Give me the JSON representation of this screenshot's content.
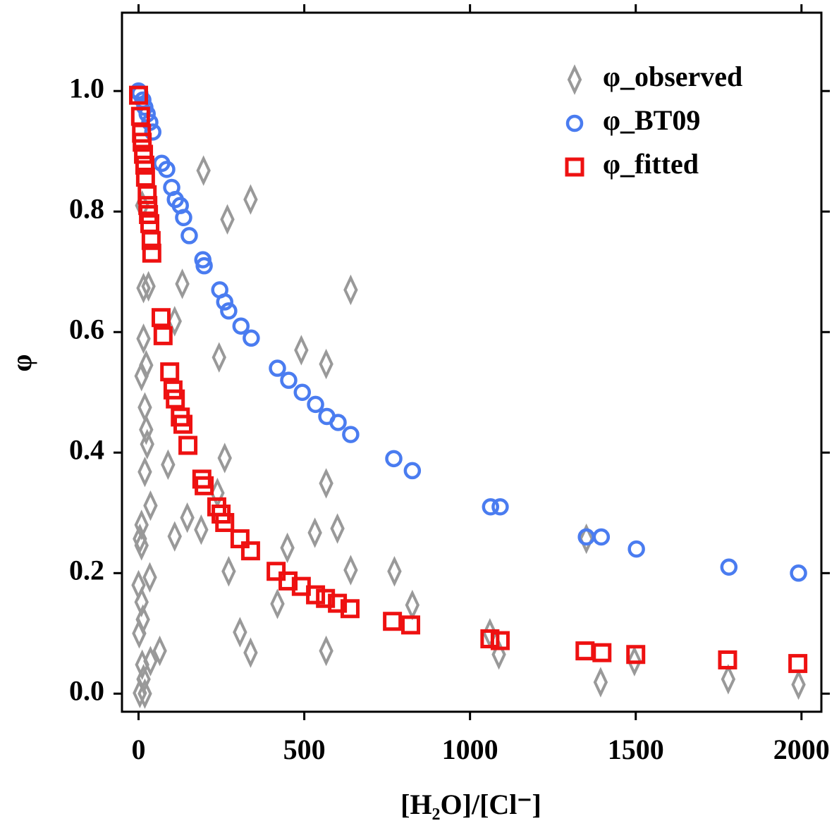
{
  "chart_data": {
    "type": "scatter",
    "xlabel": "[H₂O]/[Cl⁻]",
    "ylabel": "φ",
    "xlim": [
      -50,
      2060
    ],
    "ylim": [
      -0.03,
      1.13
    ],
    "xticks": [
      0,
      500,
      1000,
      1500,
      2000
    ],
    "yticks": [
      {
        "value": 0,
        "label": "0.0"
      },
      0.2,
      0.4,
      0.6,
      0.8,
      {
        "value": 1,
        "label": "1.0"
      }
    ],
    "legend": "upper right",
    "series": [
      {
        "name": "φ_observed",
        "color": "#999999",
        "marker": "diamond",
        "x": [
          196,
          338,
          268,
          11,
          640,
          15,
          30,
          132,
          109,
          491,
          566,
          243,
          15,
          23,
          9,
          19,
          23,
          26,
          19,
          89,
          260,
          566,
          36,
          9,
          4,
          9,
          147,
          189,
          109,
          238,
          532,
          600,
          449,
          272,
          640,
          772,
          419,
          826,
          34,
          0,
          9,
          2,
          13,
          306,
          338,
          566,
          64,
          36,
          11,
          15,
          4,
          19,
          1060,
          1087,
          1351,
          1394,
          1496,
          1779,
          1991
        ],
        "values": [
          0.868,
          0.82,
          0.787,
          0.81,
          0.67,
          0.673,
          0.676,
          0.68,
          0.618,
          0.57,
          0.547,
          0.558,
          0.589,
          0.545,
          0.527,
          0.475,
          0.438,
          0.414,
          0.368,
          0.38,
          0.391,
          0.349,
          0.312,
          0.28,
          0.257,
          0.246,
          0.292,
          0.272,
          0.261,
          0.333,
          0.267,
          0.274,
          0.242,
          0.203,
          0.205,
          0.203,
          0.149,
          0.147,
          0.193,
          0.18,
          0.152,
          0.1,
          0.123,
          0.102,
          0.068,
          0.071,
          0.071,
          0.054,
          0.048,
          0.024,
          0.001,
          0.0,
          0.1,
          0.065,
          0.257,
          0.019,
          0.054,
          0.024,
          0.015
        ]
      },
      {
        "name": "φ_BT09",
        "color": "#4a7cf0",
        "marker": "circle",
        "x": [
          0,
          4,
          13,
          19,
          26,
          34,
          43,
          70,
          85,
          100,
          111,
          126,
          136,
          153,
          194,
          198,
          245,
          260,
          272,
          309,
          340,
          419,
          453,
          494,
          534,
          568,
          602,
          640,
          770,
          826,
          1062,
          1091,
          1351,
          1396,
          1502,
          1781,
          1991
        ],
        "values": [
          1.0,
          0.996,
          0.985,
          0.973,
          0.962,
          0.948,
          0.932,
          0.88,
          0.87,
          0.84,
          0.82,
          0.81,
          0.79,
          0.76,
          0.72,
          0.71,
          0.67,
          0.65,
          0.635,
          0.61,
          0.59,
          0.54,
          0.52,
          0.5,
          0.48,
          0.46,
          0.45,
          0.43,
          0.39,
          0.37,
          0.31,
          0.31,
          0.26,
          0.26,
          0.24,
          0.21,
          0.2
        ]
      },
      {
        "name": "φ_fitted",
        "color": "#ee1111",
        "marker": "square",
        "x": [
          0,
          6,
          9,
          11,
          15,
          19,
          21,
          26,
          28,
          30,
          34,
          38,
          40,
          68,
          74,
          94,
          104,
          111,
          126,
          134,
          149,
          191,
          198,
          236,
          249,
          260,
          306,
          338,
          415,
          451,
          491,
          534,
          564,
          600,
          638,
          766,
          821,
          1060,
          1091,
          1347,
          1398,
          1500,
          1777,
          1989
        ],
        "values": [
          0.993,
          0.958,
          0.93,
          0.915,
          0.895,
          0.877,
          0.857,
          0.828,
          0.81,
          0.795,
          0.78,
          0.752,
          0.731,
          0.624,
          0.594,
          0.534,
          0.504,
          0.489,
          0.459,
          0.447,
          0.412,
          0.356,
          0.345,
          0.31,
          0.298,
          0.284,
          0.257,
          0.237,
          0.203,
          0.187,
          0.178,
          0.164,
          0.158,
          0.15,
          0.141,
          0.12,
          0.114,
          0.091,
          0.088,
          0.071,
          0.068,
          0.065,
          0.056,
          0.05
        ]
      }
    ]
  }
}
